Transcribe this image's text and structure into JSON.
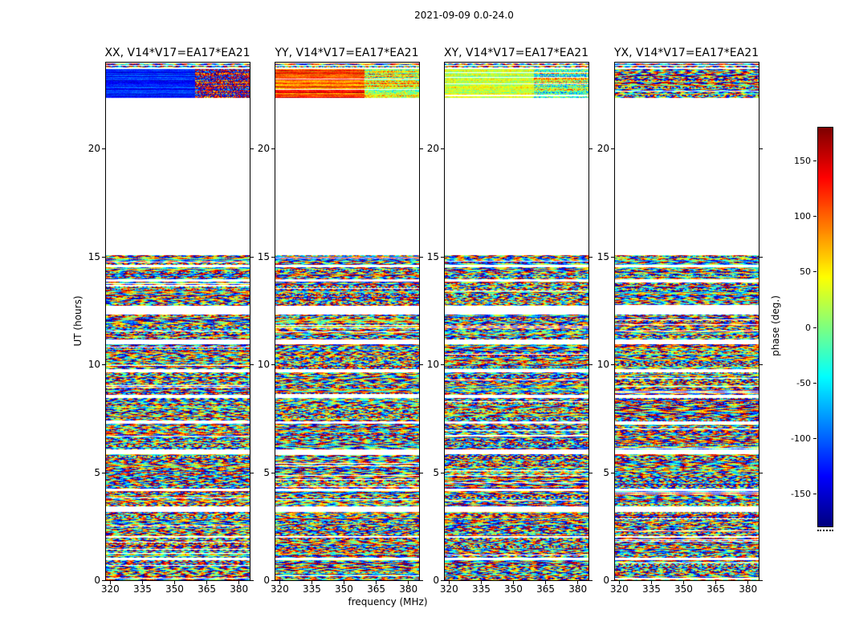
{
  "figure": {
    "title": "2021-09-09 0.0-24.0",
    "background": "#ffffff"
  },
  "chart_data": {
    "type": "heatmap",
    "title": "2021-09-09 0.0-24.0",
    "xlabel": "frequency (MHz)",
    "ylabel": "UT (hours)",
    "xlim": [
      318,
      385
    ],
    "ylim": [
      0,
      24
    ],
    "xticks": [
      320,
      335,
      350,
      365,
      380
    ],
    "yticks": [
      0,
      5,
      10,
      15,
      20
    ],
    "colormap": "jet",
    "colorbar": {
      "label": "phase (deg.)",
      "ticks": [
        150,
        100,
        50,
        0,
        -50,
        -100,
        -150
      ],
      "vmin": -180,
      "vmax": 180
    },
    "scan_bands_hours": [
      [
        0.0,
        0.93
      ],
      [
        1.04,
        1.97
      ],
      [
        2.06,
        3.17
      ],
      [
        3.42,
        4.12
      ],
      [
        4.26,
        5.85
      ],
      [
        6.06,
        7.24
      ],
      [
        7.38,
        8.46
      ],
      [
        8.58,
        9.64
      ],
      [
        9.78,
        10.93
      ],
      [
        11.15,
        12.33
      ],
      [
        12.72,
        13.85
      ],
      [
        13.96,
        14.52
      ],
      [
        14.62,
        15.08
      ]
    ],
    "gap_hours": [
      15.08,
      22.35
    ],
    "top_band_hours": [
      22.35,
      23.72
    ],
    "hair_line_bands_hours": [
      [
        23.78,
        23.84
      ],
      [
        23.9,
        23.97
      ]
    ],
    "panels": [
      {
        "title": "XX, V14*V17=EA17*EA21",
        "corr": "XX",
        "seed": 11,
        "top_band_segments": [
          {
            "xfrac": [
              0.0,
              0.62
            ],
            "mode": "striped",
            "base_deg": -125,
            "row_var_deg": 28,
            "pix_var_deg": 12,
            "wave_deg": 6
          },
          {
            "xfrac": [
              0.62,
              1.0
            ],
            "mode": "striped",
            "base_deg": 170,
            "row_var_deg": 60,
            "pix_var_deg": 90,
            "wave_deg": 20
          }
        ]
      },
      {
        "title": "YY, V14*V17=EA17*EA21",
        "corr": "YY",
        "seed": 22,
        "top_band_segments": [
          {
            "xfrac": [
              0.0,
              0.62
            ],
            "mode": "striped",
            "base_deg": 110,
            "row_var_deg": 45,
            "pix_var_deg": 16,
            "wave_deg": 10
          },
          {
            "xfrac": [
              0.62,
              1.0
            ],
            "mode": "striped",
            "base_deg": 35,
            "row_var_deg": 70,
            "pix_var_deg": 55,
            "wave_deg": 15
          }
        ]
      },
      {
        "title": "XY, V14*V17=EA17*EA21",
        "corr": "XY",
        "seed": 33,
        "top_band_segments": [
          {
            "xfrac": [
              0.0,
              0.62
            ],
            "mode": "striped",
            "base_deg": 25,
            "row_var_deg": 25,
            "pix_var_deg": 28,
            "wave_deg": 10
          },
          {
            "xfrac": [
              0.62,
              1.0
            ],
            "mode": "striped",
            "base_deg": 10,
            "row_var_deg": 80,
            "pix_var_deg": 70,
            "wave_deg": 15
          }
        ]
      },
      {
        "title": "YX, V14*V17=EA17*EA21",
        "corr": "YX",
        "seed": 44,
        "top_band_segments": [
          {
            "xfrac": [
              0.0,
              1.0
            ],
            "mode": "fringe"
          }
        ]
      }
    ]
  }
}
